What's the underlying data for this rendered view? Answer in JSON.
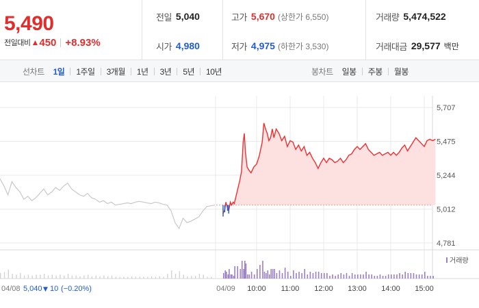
{
  "quote": {
    "price": "5,490",
    "change_label": "전일대비",
    "change_icon": "up-triangle-icon",
    "change_amount": "450",
    "change_percent": "+8.93%",
    "up_color": "#e22d2d",
    "down_color": "#1f5bd6"
  },
  "stats": {
    "prev_close": {
      "label": "전일",
      "value": "5,040"
    },
    "open": {
      "label": "시가",
      "value": "4,980"
    },
    "high": {
      "label": "고가",
      "value": "5,670",
      "limit": "(상한가 6,550)"
    },
    "low": {
      "label": "저가",
      "value": "4,975",
      "limit": "(하한가 3,530)"
    },
    "volume": {
      "label": "거래량",
      "value": "5,474,522"
    },
    "trade_value": {
      "label": "거래대금",
      "value": "29,577",
      "unit": "백만"
    }
  },
  "line_tabs": {
    "heading": "선차트",
    "items": [
      "1일",
      "1주일",
      "3개월",
      "1년",
      "3년",
      "5년",
      "10년"
    ],
    "active": "1일"
  },
  "candle_tabs": {
    "heading": "봉차트",
    "items": [
      "일봉",
      "주봉",
      "월봉"
    ]
  },
  "chart_data": {
    "type": "line",
    "y_ticks": [
      "5,707",
      "5,475",
      "5,244",
      "5,012",
      "4,781"
    ],
    "y_tick_values": [
      5707,
      5475,
      5244,
      5012,
      4781
    ],
    "ylim": [
      4781,
      5707
    ],
    "prev_close": 5040,
    "x_labels": [
      "04/09",
      "10:00",
      "11:00",
      "12:00",
      "13:00",
      "14:00",
      "15:00"
    ],
    "volume_label": "거래량",
    "prev_day": {
      "date_label": "04/08",
      "close": "5,040",
      "change_icon": "down-triangle-icon",
      "change_amount": "10",
      "change_percent": "(−0.20%)",
      "series": [
        [
          0,
          5220
        ],
        [
          1,
          5170
        ],
        [
          2,
          5110
        ],
        [
          3,
          5200
        ],
        [
          4,
          5160
        ],
        [
          5,
          5130
        ],
        [
          6,
          5080
        ],
        [
          7,
          5100
        ],
        [
          8,
          5070
        ],
        [
          9,
          5090
        ],
        [
          10,
          5120
        ],
        [
          11,
          5150
        ],
        [
          12,
          5110
        ],
        [
          13,
          5130
        ],
        [
          14,
          5160
        ],
        [
          15,
          5140
        ],
        [
          16,
          5170
        ],
        [
          17,
          5190
        ],
        [
          18,
          5150
        ],
        [
          19,
          5130
        ],
        [
          20,
          5110
        ],
        [
          21,
          5100
        ],
        [
          22,
          5120
        ],
        [
          23,
          5090
        ],
        [
          24,
          5080
        ],
        [
          25,
          5060
        ],
        [
          26,
          5070
        ],
        [
          27,
          5050
        ],
        [
          28,
          5060
        ],
        [
          29,
          5040
        ],
        [
          30,
          5045
        ],
        [
          31,
          5050
        ],
        [
          32,
          5055
        ],
        [
          33,
          5050
        ],
        [
          34,
          5060
        ],
        [
          35,
          5065
        ],
        [
          36,
          5060
        ],
        [
          37,
          5055
        ],
        [
          38,
          5050
        ],
        [
          39,
          5060
        ],
        [
          40,
          5055
        ],
        [
          41,
          5045
        ],
        [
          42,
          5040
        ],
        [
          43,
          5000
        ],
        [
          44,
          4920
        ],
        [
          45,
          4880
        ],
        [
          46,
          4950
        ],
        [
          47,
          4920
        ],
        [
          48,
          4930
        ],
        [
          49,
          4945
        ],
        [
          50,
          4960
        ],
        [
          51,
          5000
        ],
        [
          52,
          5030
        ],
        [
          53,
          5035
        ],
        [
          54,
          5040
        ]
      ]
    },
    "today": {
      "series": [
        [
          "09:00",
          4980
        ],
        [
          "09:03",
          5010
        ],
        [
          "09:05",
          5060
        ],
        [
          "09:08",
          5020
        ],
        [
          "09:10",
          5000
        ],
        [
          "09:13",
          5060
        ],
        [
          "09:15",
          5040
        ],
        [
          "09:18",
          5060
        ],
        [
          "09:20",
          5050
        ],
        [
          "09:25",
          5130
        ],
        [
          "09:30",
          5210
        ],
        [
          "09:33",
          5270
        ],
        [
          "09:36",
          5470
        ],
        [
          "09:38",
          5530
        ],
        [
          "09:40",
          5400
        ],
        [
          "09:43",
          5300
        ],
        [
          "09:46",
          5280
        ],
        [
          "09:50",
          5260
        ],
        [
          "09:55",
          5300
        ],
        [
          "10:00",
          5320
        ],
        [
          "10:05",
          5380
        ],
        [
          "10:10",
          5470
        ],
        [
          "10:13",
          5600
        ],
        [
          "10:16",
          5560
        ],
        [
          "10:19",
          5530
        ],
        [
          "10:22",
          5480
        ],
        [
          "10:25",
          5500
        ],
        [
          "10:28",
          5560
        ],
        [
          "10:31",
          5500
        ],
        [
          "10:35",
          5560
        ],
        [
          "10:40",
          5530
        ],
        [
          "10:45",
          5480
        ],
        [
          "10:50",
          5510
        ],
        [
          "10:55",
          5440
        ],
        [
          "11:00",
          5480
        ],
        [
          "11:05",
          5470
        ],
        [
          "11:10",
          5420
        ],
        [
          "11:15",
          5450
        ],
        [
          "11:20",
          5410
        ],
        [
          "11:25",
          5440
        ],
        [
          "11:30",
          5380
        ],
        [
          "11:35",
          5400
        ],
        [
          "11:40",
          5360
        ],
        [
          "11:45",
          5330
        ],
        [
          "11:50",
          5290
        ],
        [
          "11:55",
          5330
        ],
        [
          "12:00",
          5360
        ],
        [
          "12:05",
          5330
        ],
        [
          "12:10",
          5360
        ],
        [
          "12:15",
          5350
        ],
        [
          "12:20",
          5330
        ],
        [
          "12:25",
          5340
        ],
        [
          "12:30",
          5360
        ],
        [
          "12:35",
          5330
        ],
        [
          "12:40",
          5350
        ],
        [
          "12:45",
          5380
        ],
        [
          "12:50",
          5390
        ],
        [
          "12:55",
          5420
        ],
        [
          "13:00",
          5440
        ],
        [
          "13:05",
          5420
        ],
        [
          "13:10",
          5440
        ],
        [
          "13:15",
          5460
        ],
        [
          "13:20",
          5420
        ],
        [
          "13:25",
          5400
        ],
        [
          "13:30",
          5380
        ],
        [
          "13:35",
          5390
        ],
        [
          "13:40",
          5400
        ],
        [
          "13:45",
          5380
        ],
        [
          "13:50",
          5390
        ],
        [
          "13:55",
          5400
        ],
        [
          "14:00",
          5380
        ],
        [
          "14:05",
          5400
        ],
        [
          "14:10",
          5380
        ],
        [
          "14:15",
          5400
        ],
        [
          "14:20",
          5430
        ],
        [
          "14:25",
          5450
        ],
        [
          "14:30",
          5410
        ],
        [
          "14:35",
          5440
        ],
        [
          "14:40",
          5470
        ],
        [
          "14:45",
          5500
        ],
        [
          "14:50",
          5480
        ],
        [
          "14:55",
          5460
        ],
        [
          "15:00",
          5440
        ],
        [
          "15:05",
          5480
        ],
        [
          "15:10",
          5490
        ],
        [
          "15:15",
          5480
        ],
        [
          "15:20",
          5490
        ]
      ]
    },
    "colors": {
      "prev_line": "#c8c8c8",
      "today_line": "#ef2f2f",
      "today_fill": "#fde0e0",
      "below_open": "#1f5bd6",
      "volume_prev": "#d3d3d3",
      "volume_today": "#9b7fc4",
      "grid": "#e8e8e8"
    }
  }
}
